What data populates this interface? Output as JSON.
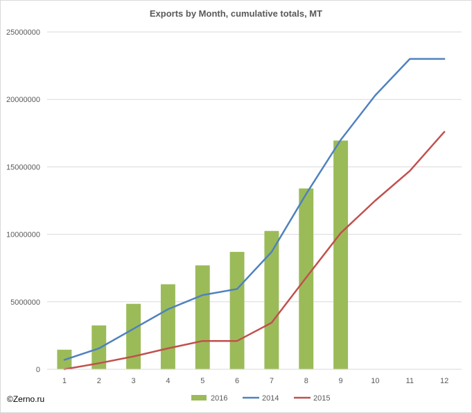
{
  "chart_data": {
    "type": "bar",
    "title": "Exports by Month, cumulative totals, MT",
    "xlabel": "",
    "ylabel": "",
    "categories": [
      "1",
      "2",
      "3",
      "4",
      "5",
      "6",
      "7",
      "8",
      "9",
      "10",
      "11",
      "12"
    ],
    "ylim": [
      0,
      25000000
    ],
    "yticks": [
      "0",
      "5000000",
      "10000000",
      "15000000",
      "20000000",
      "25000000"
    ],
    "grid": true,
    "legend_position": "bottom",
    "series": [
      {
        "name": "2016",
        "type": "bar",
        "color": "#9bbb59",
        "values": [
          1450000,
          3250000,
          4850000,
          6300000,
          7700000,
          8700000,
          10250000,
          13400000,
          16950000,
          null,
          null,
          null
        ]
      },
      {
        "name": "2014",
        "type": "line",
        "color": "#4f81bd",
        "values": [
          700000,
          1550000,
          3000000,
          4450000,
          5500000,
          5950000,
          8700000,
          13000000,
          17000000,
          20300000,
          23000000,
          23000000
        ]
      },
      {
        "name": "2015",
        "type": "line",
        "color": "#c0504d",
        "values": [
          0,
          450000,
          950000,
          1550000,
          2100000,
          2100000,
          3450000,
          6800000,
          10100000,
          12500000,
          14700000,
          17600000
        ]
      }
    ]
  },
  "watermark": "©Zerno.ru"
}
